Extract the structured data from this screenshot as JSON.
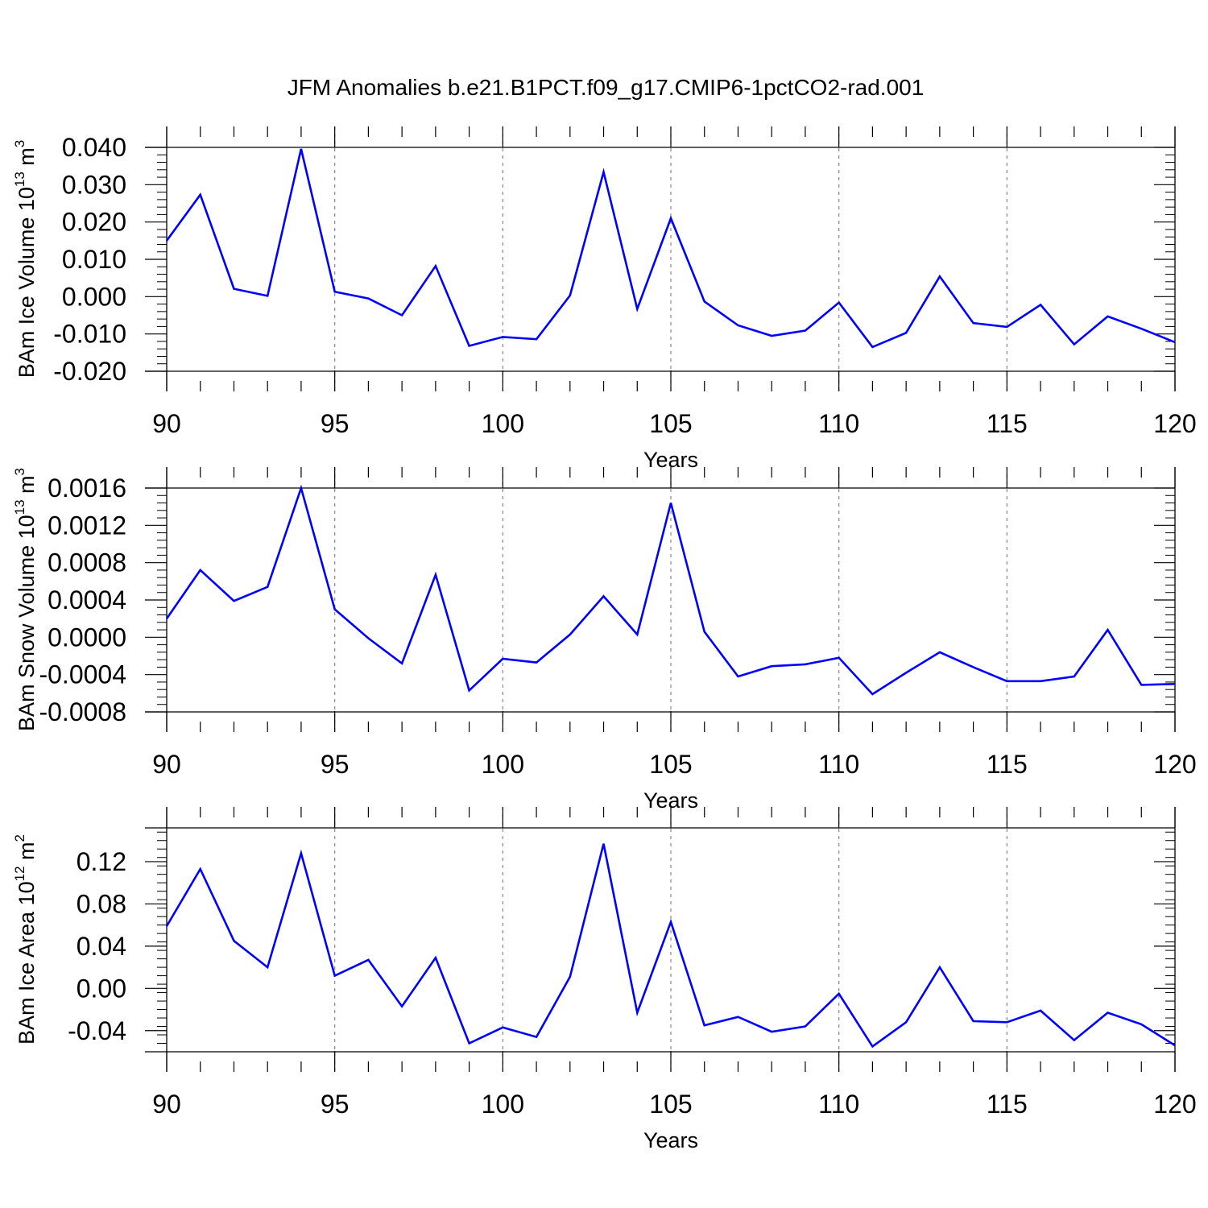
{
  "figure": {
    "title": "JFM Anomalies b.e21.B1PCT.f09_g17.CMIP6-1pctCO2-rad.001"
  },
  "colors": {
    "series_line": "#0000ff",
    "axes": "#000000",
    "grid": "#888888"
  },
  "chart_data": [
    {
      "type": "line",
      "title": "",
      "xlabel": "Years",
      "ylabel": {
        "prefix": "BAm Ice Volume 10",
        "exp1": "13",
        "mid": " m",
        "exp2": "3"
      },
      "xlim": [
        90,
        120
      ],
      "ylim": [
        -0.02,
        0.04
      ],
      "x_ticks": [
        90,
        95,
        100,
        105,
        110,
        115,
        120
      ],
      "x_tick_labels": [
        "90",
        "95",
        "100",
        "105",
        "110",
        "115",
        "120"
      ],
      "y_ticks": [
        -0.02,
        -0.01,
        0.0,
        0.01,
        0.02,
        0.03,
        0.04
      ],
      "y_tick_labels": [
        "-0.020",
        "-0.010",
        "0.000",
        "0.010",
        "0.020",
        "0.030",
        "0.040"
      ],
      "grid": "vertical dashed at major x ticks",
      "x": [
        90,
        91,
        92,
        93,
        94,
        95,
        96,
        97,
        98,
        99,
        100,
        101,
        102,
        103,
        104,
        105,
        106,
        107,
        108,
        109,
        110,
        111,
        112,
        113,
        114,
        115,
        116,
        117,
        118,
        119,
        120
      ],
      "values": [
        0.015,
        0.0273,
        0.0021,
        0.0002,
        0.0396,
        0.0013,
        -0.0005,
        -0.005,
        0.0082,
        -0.0132,
        -0.0108,
        -0.0114,
        0.0003,
        0.0334,
        -0.0033,
        0.021,
        -0.0013,
        -0.0077,
        -0.0105,
        -0.0091,
        -0.0016,
        -0.0135,
        -0.0097,
        0.0054,
        -0.0071,
        -0.0081,
        -0.0022,
        -0.0128,
        -0.0053,
        -0.0086,
        -0.0122
      ]
    },
    {
      "type": "line",
      "title": "",
      "xlabel": "Years",
      "ylabel": {
        "prefix": "BAm Snow Volume 10",
        "exp1": "13",
        "mid": " m",
        "exp2": "3"
      },
      "xlim": [
        90,
        120
      ],
      "ylim": [
        -0.0008,
        0.0016
      ],
      "x_ticks": [
        90,
        95,
        100,
        105,
        110,
        115,
        120
      ],
      "x_tick_labels": [
        "90",
        "95",
        "100",
        "105",
        "110",
        "115",
        "120"
      ],
      "y_ticks": [
        -0.0008,
        -0.0004,
        0.0,
        0.0004,
        0.0008,
        0.0012,
        0.0016
      ],
      "y_tick_labels": [
        "-0.0008",
        "-0.0004",
        "0.0000",
        "0.0004",
        "0.0008",
        "0.0012",
        "0.0016"
      ],
      "grid": "vertical dashed at major x ticks",
      "x": [
        90,
        91,
        92,
        93,
        94,
        95,
        96,
        97,
        98,
        99,
        100,
        101,
        102,
        103,
        104,
        105,
        106,
        107,
        108,
        109,
        110,
        111,
        112,
        113,
        114,
        115,
        116,
        117,
        118,
        119,
        120
      ],
      "values": [
        0.0002,
        0.00072,
        0.00039,
        0.00054,
        0.0016,
        0.0003,
        -1e-05,
        -0.00028,
        0.00067,
        -0.00057,
        -0.00023,
        -0.00027,
        3e-05,
        0.00044,
        3e-05,
        0.00144,
        6e-05,
        -0.00042,
        -0.00031,
        -0.00029,
        -0.00022,
        -0.00061,
        -0.00038,
        -0.00016,
        -0.00032,
        -0.00047,
        -0.00047,
        -0.00042,
        8e-05,
        -0.00051,
        -0.0005
      ]
    },
    {
      "type": "line",
      "title": "",
      "xlabel": "Years",
      "ylabel": {
        "prefix": "BAm Ice Area 10",
        "exp1": "12",
        "mid": " m",
        "exp2": "2"
      },
      "xlim": [
        90,
        120
      ],
      "ylim": [
        -0.06,
        0.152
      ],
      "x_ticks": [
        90,
        95,
        100,
        105,
        110,
        115,
        120
      ],
      "x_tick_labels": [
        "90",
        "95",
        "100",
        "105",
        "110",
        "115",
        "120"
      ],
      "y_ticks": [
        -0.04,
        0.0,
        0.04,
        0.08,
        0.12
      ],
      "y_tick_labels": [
        "-0.04",
        "0.00",
        "0.04",
        "0.08",
        "0.12"
      ],
      "grid": "vertical dashed at major x ticks",
      "x": [
        90,
        91,
        92,
        93,
        94,
        95,
        96,
        97,
        98,
        99,
        100,
        101,
        102,
        103,
        104,
        105,
        106,
        107,
        108,
        109,
        110,
        111,
        112,
        113,
        114,
        115,
        116,
        117,
        118,
        119,
        120
      ],
      "values": [
        0.059,
        0.113,
        0.045,
        0.02,
        0.128,
        0.012,
        0.027,
        -0.017,
        0.029,
        -0.052,
        -0.037,
        -0.046,
        0.011,
        0.137,
        -0.023,
        0.063,
        -0.035,
        -0.027,
        -0.041,
        -0.036,
        -0.005,
        -0.055,
        -0.032,
        0.02,
        -0.031,
        -0.032,
        -0.021,
        -0.049,
        -0.023,
        -0.034,
        -0.054
      ]
    }
  ]
}
